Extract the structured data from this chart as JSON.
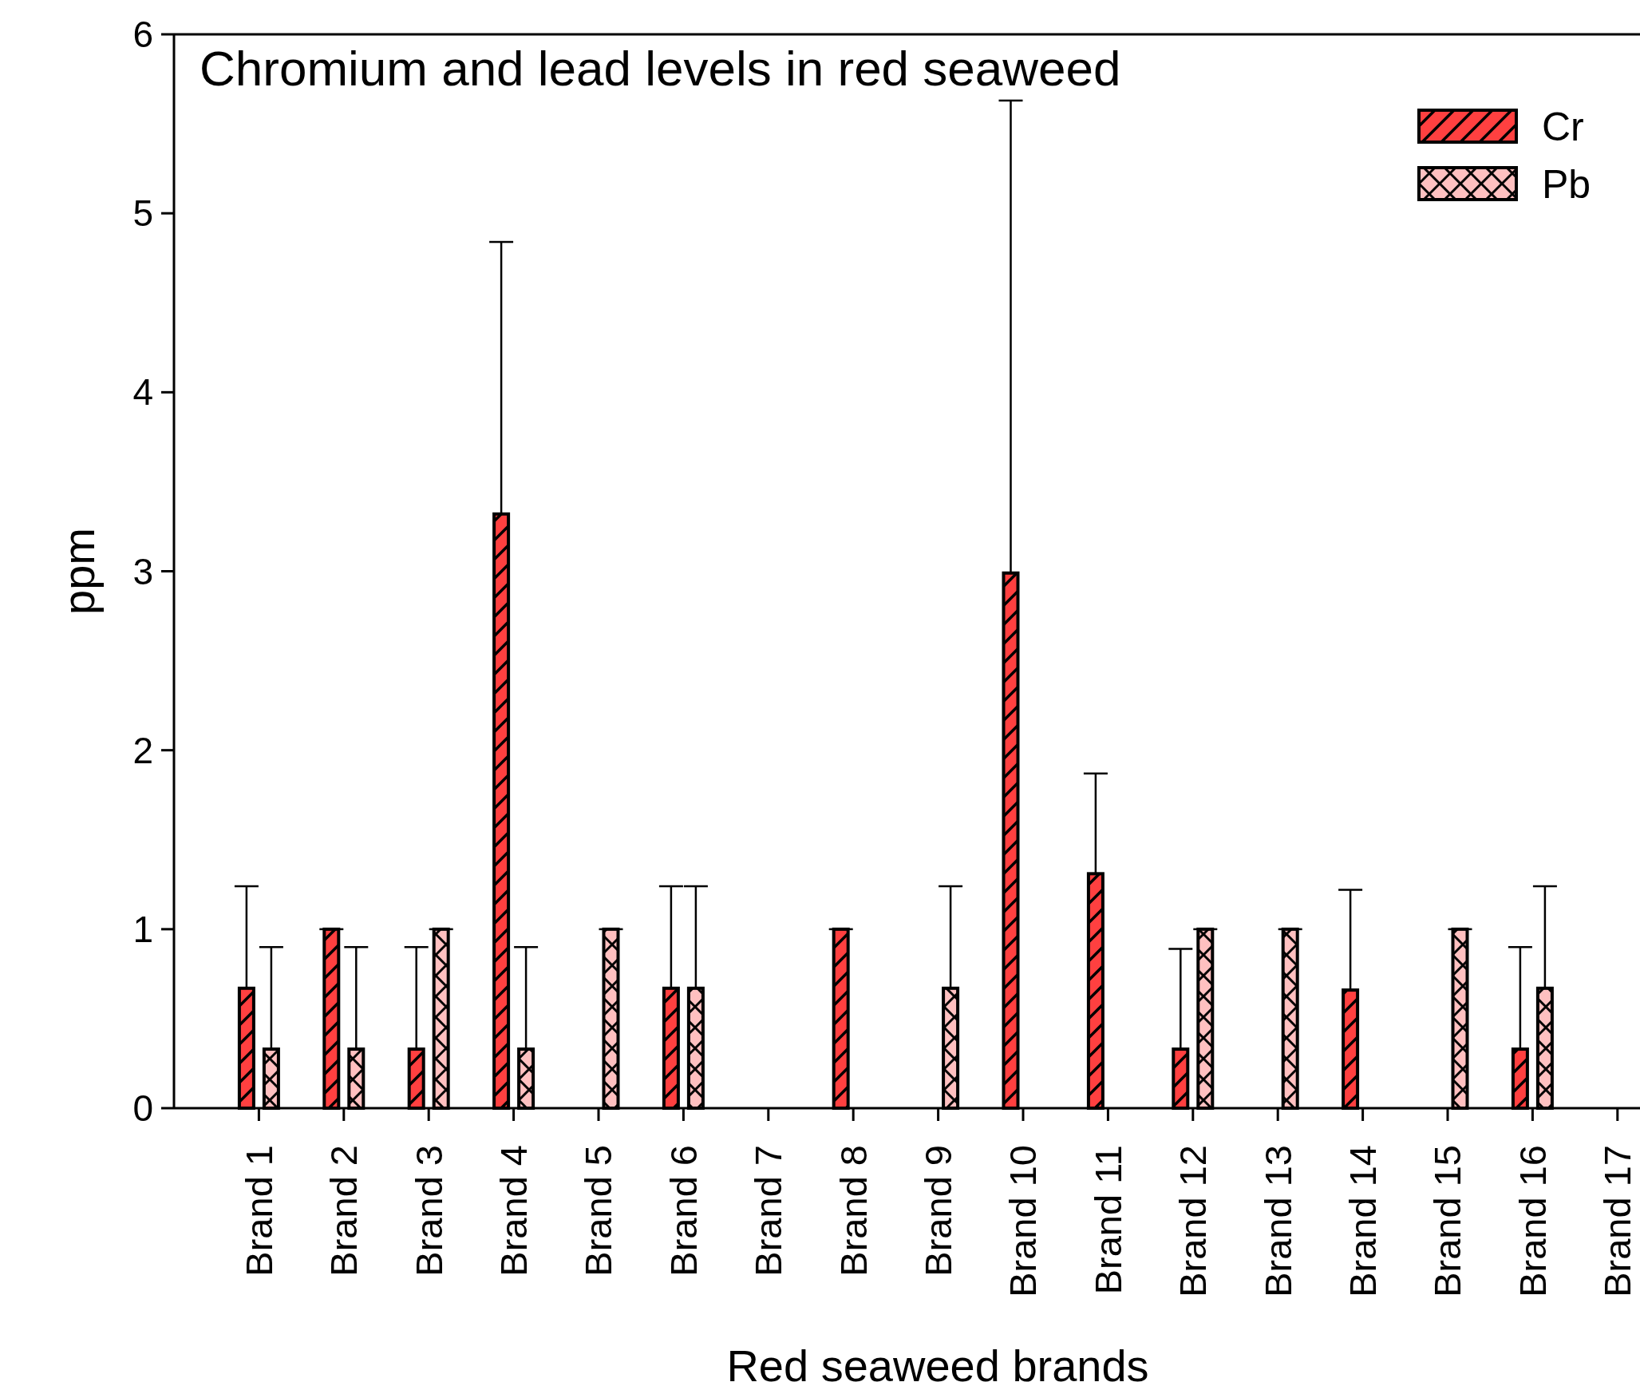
{
  "chart_data": {
    "type": "bar",
    "annotations": [
      "Chromium and lead levels in red seaweed"
    ],
    "xlabel": "Red seaweed brands",
    "ylabel": "ppm",
    "categories": [
      "Brand 1",
      "Brand 2",
      "Brand 3",
      "Brand 4",
      "Brand 5",
      "Brand 6",
      "Brand 7",
      "Brand 8",
      "Brand 9",
      "Brand 10",
      "Brand 11",
      "Brand 12",
      "Brand 13",
      "Brand 14",
      "Brand 15",
      "Brand 16",
      "Brand 17"
    ],
    "series": [
      {
        "name": "Cr",
        "color": "#ff4040",
        "values": [
          0.67,
          1.0,
          0.33,
          3.32,
          null,
          0.67,
          null,
          1.0,
          null,
          2.99,
          1.31,
          0.33,
          null,
          0.66,
          null,
          0.33,
          null
        ],
        "errors": [
          0.57,
          0,
          0.57,
          1.52,
          null,
          0.57,
          null,
          0,
          null,
          2.64,
          0.56,
          0.56,
          null,
          0.56,
          null,
          0.57,
          null
        ]
      },
      {
        "name": "Pb",
        "color": "#ffc0c0",
        "values": [
          0.33,
          0.33,
          1.0,
          0.33,
          1.0,
          0.67,
          null,
          null,
          0.67,
          null,
          null,
          1.0,
          1.0,
          null,
          1.0,
          0.67,
          null
        ],
        "errors": [
          0.57,
          0.57,
          0,
          0.57,
          0,
          0.57,
          null,
          null,
          0.57,
          null,
          null,
          0,
          0,
          null,
          0,
          0.57,
          null
        ]
      }
    ],
    "ylim": [
      0,
      6
    ],
    "yticks": [
      0,
      1,
      2,
      3,
      4,
      5,
      6
    ],
    "grid": false,
    "legend": "top right"
  }
}
